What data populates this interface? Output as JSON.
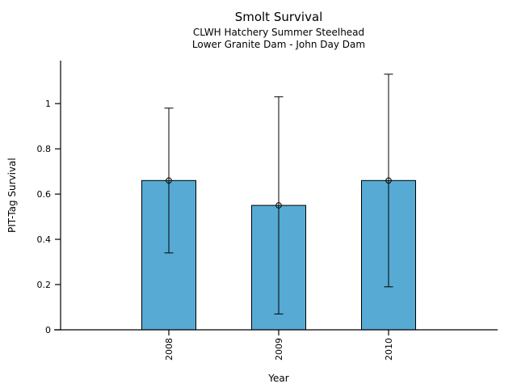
{
  "title": "Smolt Survival",
  "subtitle_line1": "CLWH Hatchery Summer Steelhead",
  "subtitle_line2": "Lower Granite Dam - John Day Dam",
  "chart_data": {
    "type": "bar",
    "title": "Smolt Survival",
    "subtitle": [
      "CLWH Hatchery Summer Steelhead",
      "Lower Granite Dam - John Day Dam"
    ],
    "categories": [
      "2008",
      "2009",
      "2010"
    ],
    "values": [
      0.66,
      0.55,
      0.66
    ],
    "error_low": [
      0.34,
      0.07,
      0.19
    ],
    "error_high": [
      0.98,
      1.03,
      1.13
    ],
    "xlabel": "Year",
    "ylabel": "PIT-Tag Survival",
    "ylim": [
      0,
      1.19
    ],
    "yticks": [
      0,
      0.2,
      0.4,
      0.6,
      0.8,
      1
    ],
    "ytick_labels": [
      "0",
      "0.2",
      "0.4",
      "0.6",
      "0.8",
      "1"
    ],
    "marker": "open-circle",
    "grid": false,
    "legend_position": "none",
    "colors": {
      "bar_fill": "#57AAD4",
      "bar_border": "#000000",
      "axis": "#000000",
      "error_bar": "#000000",
      "background": "#ffffff"
    }
  }
}
